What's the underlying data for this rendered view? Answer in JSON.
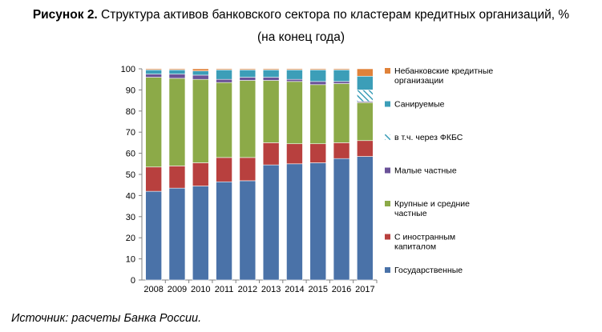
{
  "figure": {
    "title_bold": "Рисунок 2.",
    "title_rest": " Структура активов банковского сектора по кластерам кредитных организаций, %",
    "title_line2": "(на конец года)",
    "source": "Источник: расчеты Банка России."
  },
  "chart_data": {
    "type": "bar",
    "stacked": true,
    "categories": [
      "2008",
      "2009",
      "2010",
      "2011",
      "2012",
      "2013",
      "2014",
      "2015",
      "2016",
      "2017"
    ],
    "ylim": [
      0,
      100
    ],
    "yticks": [
      0,
      10,
      20,
      30,
      40,
      50,
      60,
      70,
      80,
      90,
      100
    ],
    "grid": false,
    "legend_position": "right",
    "series": [
      {
        "name": "Государственные",
        "color": "#4A72A8",
        "values": [
          42,
          43.5,
          44.5,
          46.5,
          47,
          54.5,
          55,
          55.5,
          57.5,
          58.5
        ]
      },
      {
        "name": "С иностранным капиталом",
        "color": "#B8403E",
        "values": [
          11.5,
          10.5,
          11,
          11.5,
          11,
          10.5,
          9.5,
          9,
          7.5,
          7.5
        ]
      },
      {
        "name": "Крупные и средние частные",
        "color": "#8CAA48",
        "values": [
          42.5,
          41.5,
          39.5,
          35.5,
          36.5,
          29.5,
          29.5,
          28,
          28,
          18
        ]
      },
      {
        "name": "Малые частные",
        "color": "#6A5298",
        "values": [
          1.5,
          2,
          2,
          1.5,
          1.5,
          1.5,
          1,
          1.5,
          1,
          0.5
        ]
      },
      {
        "name": "в т.ч. через ФКБС",
        "color": "#3C9EB8",
        "hatched": true,
        "values": [
          0,
          0,
          0,
          0,
          0,
          0,
          0,
          0,
          0,
          5.5
        ]
      },
      {
        "name": "Санируемые",
        "color": "#3C9EB8",
        "values": [
          2,
          2,
          2,
          4.5,
          3.5,
          3.5,
          4.5,
          5.5,
          5.5,
          6.5
        ]
      },
      {
        "name": "Небанковские кредитные организации",
        "color": "#E0823A",
        "values": [
          0.5,
          0.5,
          1,
          0.5,
          0.5,
          0.5,
          0.5,
          0.5,
          0.5,
          3.5
        ]
      }
    ],
    "legend_order": [
      [
        "Небанковские кредитные",
        "организации"
      ],
      [
        "Санируемые"
      ],
      [
        "в т.ч. через ФКБС"
      ],
      [
        "Малые частные"
      ],
      [
        "Крупные и средние",
        "частные"
      ],
      [
        "С иностранным",
        "капиталом"
      ],
      [
        "Государственные"
      ]
    ],
    "legend_series_index": [
      6,
      5,
      4,
      3,
      2,
      1,
      0
    ]
  }
}
